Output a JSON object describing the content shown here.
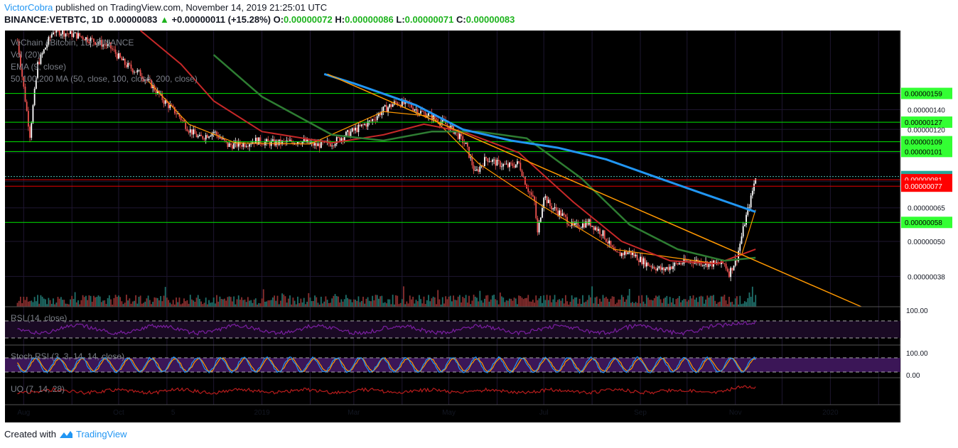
{
  "header": {
    "author": "VictorCobra",
    "published_text": "published on TradingView.com, November 14, 2019 21:25:01 UTC",
    "symbol": "BINANCE:VETBTC, 1D",
    "last": "0.00000083",
    "change_arrow": "▲",
    "change": "+0.00000011 (+15.28%)",
    "o_label": "O:",
    "o_value": "0.00000072",
    "h_label": "H:",
    "h_value": "0.00000086",
    "l_label": "L:",
    "l_value": "0.00000071",
    "c_label": "C:",
    "c_value": "0.00000083"
  },
  "legend": {
    "title": "VeChain / Bitcoin, 1D, BINANCE",
    "vol": "Vol (20)",
    "ema": "EMA (9, close)",
    "ma": "50,100,200 MA (50, close, 100, close, 200, close)"
  },
  "indicators": {
    "rsi": {
      "label": "RSI (14, close)",
      "top_tick": "100.00"
    },
    "stoch": {
      "label": "Stoch RSI (3, 3, 14, 14, close)",
      "top_tick": "100.00",
      "bottom_tick": "0.00"
    },
    "uo": {
      "label": "UO (7, 14, 28)"
    }
  },
  "footer": {
    "created_with": "Created with",
    "brand": "TradingView"
  },
  "colors": {
    "background": "#000000",
    "up_candle": "#ffffff",
    "down_candle": "#ef5350",
    "support_line": "#00e600",
    "resistance_line": "#e60000",
    "ema9": "#ff9800",
    "ma50": "#c62828",
    "ma100": "#2e7d32",
    "ma200": "#2196f3",
    "trendline": "#ff9800",
    "rsi": "#7b1fa2",
    "stoch_k": "#2196f3",
    "stoch_d": "#ff9800",
    "uo": "#b71c1c"
  },
  "chart_data": {
    "type": "candlestick",
    "symbol": "VETBTC",
    "exchange": "BINANCE",
    "interval": "1D",
    "y_scale": "log",
    "y_tick_labels": [
      "0.00000140",
      "0.00000120",
      "0.00000065",
      "0.00000050",
      "0.00000038"
    ],
    "x_tick_labels": [
      "Aug",
      "Oct",
      "5",
      "2019",
      "Mar",
      "May",
      "Jul",
      "Sep",
      "Nov",
      "2020"
    ],
    "price_levels": [
      {
        "label": "0.00000159",
        "kind": "support",
        "value": 159
      },
      {
        "label": "0.00000127",
        "kind": "support",
        "value": 127
      },
      {
        "label": "0.00000109",
        "kind": "support",
        "value": 109
      },
      {
        "label": "0.00000101",
        "kind": "support",
        "value": 101
      },
      {
        "label": "0.00000083",
        "kind": "last",
        "value": 83
      },
      {
        "label": "0.00000081",
        "kind": "resistance",
        "value": 81
      },
      {
        "label": "0.00000077",
        "kind": "resistance",
        "value": 77
      },
      {
        "label": "0.00000058",
        "kind": "support",
        "value": 58
      }
    ],
    "price_path": [
      [
        "2018-07-28",
        240
      ],
      [
        "2018-08-05",
        115
      ],
      [
        "2018-08-10",
        200
      ],
      [
        "2018-08-20",
        260
      ],
      [
        "2018-09-05",
        250
      ],
      [
        "2018-09-25",
        230
      ],
      [
        "2018-10-05",
        200
      ],
      [
        "2018-10-15",
        185
      ],
      [
        "2018-10-22",
        170
      ],
      [
        "2018-10-30",
        150
      ],
      [
        "2018-11-08",
        135
      ],
      [
        "2018-11-15",
        120
      ],
      [
        "2018-11-22",
        112
      ],
      [
        "2018-12-01",
        118
      ],
      [
        "2018-12-10",
        106
      ],
      [
        "2018-12-20",
        107
      ],
      [
        "2018-12-28",
        110
      ],
      [
        "2019-01-05",
        108
      ],
      [
        "2019-01-15",
        108
      ],
      [
        "2019-01-25",
        110
      ],
      [
        "2019-02-05",
        106
      ],
      [
        "2019-02-15",
        108
      ],
      [
        "2019-02-25",
        116
      ],
      [
        "2019-03-05",
        122
      ],
      [
        "2019-03-12",
        128
      ],
      [
        "2019-03-20",
        140
      ],
      [
        "2019-03-28",
        148
      ],
      [
        "2019-04-05",
        146
      ],
      [
        "2019-04-12",
        138
      ],
      [
        "2019-04-20",
        133
      ],
      [
        "2019-04-28",
        126
      ],
      [
        "2019-05-05",
        118
      ],
      [
        "2019-05-12",
        106
      ],
      [
        "2019-05-18",
        85
      ],
      [
        "2019-05-25",
        96
      ],
      [
        "2019-06-01",
        92
      ],
      [
        "2019-06-08",
        90
      ],
      [
        "2019-06-15",
        92
      ],
      [
        "2019-06-20",
        77
      ],
      [
        "2019-06-25",
        68
      ],
      [
        "2019-06-27",
        53
      ],
      [
        "2019-07-01",
        72
      ],
      [
        "2019-07-05",
        66
      ],
      [
        "2019-07-12",
        62
      ],
      [
        "2019-07-20",
        56
      ],
      [
        "2019-07-30",
        58
      ],
      [
        "2019-08-08",
        53
      ],
      [
        "2019-08-16",
        45
      ],
      [
        "2019-08-25",
        46
      ],
      [
        "2019-09-05",
        42
      ],
      [
        "2019-09-15",
        40
      ],
      [
        "2019-09-25",
        42
      ],
      [
        "2019-10-05",
        43
      ],
      [
        "2019-10-15",
        42
      ],
      [
        "2019-10-25",
        42
      ],
      [
        "2019-10-28",
        39
      ],
      [
        "2019-11-02",
        44
      ],
      [
        "2019-11-07",
        58
      ],
      [
        "2019-11-11",
        70
      ],
      [
        "2019-11-14",
        83
      ]
    ],
    "series": [
      {
        "name": "EMA (9, close)",
        "points": [
          [
            "2018-10-20",
            175
          ],
          [
            "2018-11-15",
            125
          ],
          [
            "2018-12-15",
            108
          ],
          [
            "2019-02-01",
            107
          ],
          [
            "2019-03-20",
            138
          ],
          [
            "2019-04-20",
            133
          ],
          [
            "2019-05-20",
            92
          ],
          [
            "2019-06-30",
            66
          ],
          [
            "2019-08-15",
            47
          ],
          [
            "2019-10-20",
            42
          ],
          [
            "2019-11-05",
            45
          ],
          [
            "2019-11-14",
            64
          ]
        ]
      },
      {
        "name": "MA 50",
        "points": [
          [
            "2018-10-15",
            260
          ],
          [
            "2018-11-10",
            200
          ],
          [
            "2018-12-01",
            150
          ],
          [
            "2019-01-01",
            118
          ],
          [
            "2019-02-15",
            108
          ],
          [
            "2019-03-20",
            115
          ],
          [
            "2019-04-15",
            125
          ],
          [
            "2019-05-10",
            118
          ],
          [
            "2019-06-15",
            100
          ],
          [
            "2019-07-20",
            68
          ],
          [
            "2019-08-20",
            50
          ],
          [
            "2019-09-20",
            43
          ],
          [
            "2019-10-20",
            42
          ],
          [
            "2019-11-14",
            47
          ]
        ]
      },
      {
        "name": "MA 100",
        "points": [
          [
            "2018-12-01",
            215
          ],
          [
            "2019-01-01",
            155
          ],
          [
            "2019-02-15",
            115
          ],
          [
            "2019-03-20",
            110
          ],
          [
            "2019-04-20",
            118
          ],
          [
            "2019-05-20",
            118
          ],
          [
            "2019-06-20",
            112
          ],
          [
            "2019-07-25",
            82
          ],
          [
            "2019-08-25",
            57
          ],
          [
            "2019-09-25",
            47
          ],
          [
            "2019-10-25",
            43
          ],
          [
            "2019-11-14",
            44
          ]
        ]
      },
      {
        "name": "MA 200",
        "points": [
          [
            "2019-02-10",
            185
          ],
          [
            "2019-03-01",
            172
          ],
          [
            "2019-04-10",
            145
          ],
          [
            "2019-05-10",
            120
          ],
          [
            "2019-06-10",
            110
          ],
          [
            "2019-07-10",
            104
          ],
          [
            "2019-08-10",
            95
          ],
          [
            "2019-09-10",
            83
          ],
          [
            "2019-10-10",
            73
          ],
          [
            "2019-11-14",
            63
          ]
        ]
      }
    ],
    "trendline": [
      [
        "2019-02-12",
        185
      ],
      [
        "2019-11-14",
        43
      ]
    ]
  }
}
